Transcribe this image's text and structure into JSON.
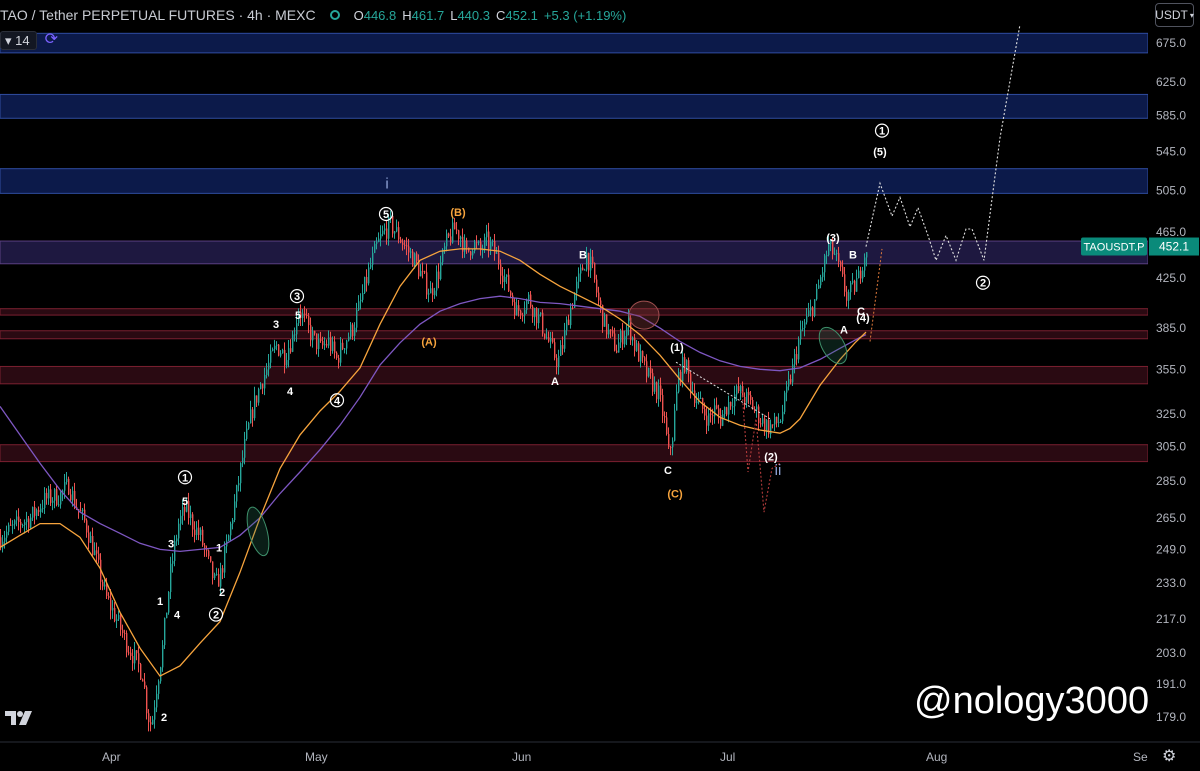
{
  "header": {
    "title": "TAO / Tether PERPETUAL FUTURES · 4h · MEXC",
    "ohlc": [
      {
        "k": "O",
        "v": "446.8"
      },
      {
        "k": "H",
        "v": "461.7"
      },
      {
        "k": "L",
        "v": "440.3"
      },
      {
        "k": "C",
        "v": "452.1"
      },
      {
        "k": "",
        "v": "+5.3 (+1.19%)"
      }
    ],
    "status_color": "#26a69a"
  },
  "indicator": {
    "length": "14"
  },
  "currency_button": {
    "label": "USDT"
  },
  "watermark": "@nology3000",
  "colors": {
    "up": "#26a69a",
    "down": "#ef5350",
    "ma_fast": "#f7a43d",
    "ma_slow": "#7e57c2",
    "zone_blue": "#0d1b47",
    "zone_red": "#2a0a10"
  },
  "icons": {
    "settings": "gear-icon",
    "logo": "tradingview-logo-icon",
    "replay": "loop-icon"
  },
  "chart_data": {
    "type": "candlestick",
    "symbol_label": "TAOUSDT.P",
    "last_price": "452.1",
    "y_scale": "log",
    "y_ticks": [
      "675.0",
      "625.0",
      "585.0",
      "545.0",
      "505.0",
      "465.0",
      "425.0",
      "385.0",
      "355.0",
      "325.0",
      "305.0",
      "285.0",
      "265.0",
      "249.0",
      "233.0",
      "217.0",
      "203.0",
      "191.0",
      "179.0"
    ],
    "x_ticks": [
      "Apr",
      "May",
      "Jun",
      "Jul",
      "Aug",
      "Se"
    ],
    "price_path": [
      [
        0,
        255
      ],
      [
        18,
        262
      ],
      [
        30,
        265
      ],
      [
        45,
        275
      ],
      [
        60,
        277
      ],
      [
        68,
        283
      ],
      [
        75,
        272
      ],
      [
        85,
        262
      ],
      [
        95,
        245
      ],
      [
        105,
        227
      ],
      [
        115,
        218
      ],
      [
        125,
        208
      ],
      [
        135,
        200
      ],
      [
        142,
        195
      ],
      [
        147,
        180
      ],
      [
        151,
        176
      ],
      [
        156,
        190
      ],
      [
        162,
        205
      ],
      [
        170,
        238
      ],
      [
        178,
        262
      ],
      [
        185,
        270
      ],
      [
        192,
        262
      ],
      [
        200,
        255
      ],
      [
        208,
        242
      ],
      [
        215,
        232
      ],
      [
        220,
        237
      ],
      [
        228,
        255
      ],
      [
        236,
        278
      ],
      [
        244,
        305
      ],
      [
        252,
        328
      ],
      [
        260,
        345
      ],
      [
        268,
        358
      ],
      [
        276,
        372
      ],
      [
        284,
        365
      ],
      [
        292,
        378
      ],
      [
        298,
        400
      ],
      [
        304,
        390
      ],
      [
        312,
        378
      ],
      [
        320,
        370
      ],
      [
        328,
        375
      ],
      [
        336,
        362
      ],
      [
        344,
        375
      ],
      [
        352,
        385
      ],
      [
        360,
        405
      ],
      [
        368,
        430
      ],
      [
        376,
        452
      ],
      [
        383,
        465
      ],
      [
        390,
        472
      ],
      [
        398,
        462
      ],
      [
        406,
        450
      ],
      [
        414,
        440
      ],
      [
        422,
        425
      ],
      [
        430,
        413
      ],
      [
        438,
        430
      ],
      [
        446,
        455
      ],
      [
        454,
        468
      ],
      [
        460,
        462
      ],
      [
        466,
        445
      ],
      [
        472,
        455
      ],
      [
        480,
        448
      ],
      [
        486,
        457
      ],
      [
        492,
        450
      ],
      [
        498,
        440
      ],
      [
        504,
        425
      ],
      [
        510,
        412
      ],
      [
        516,
        398
      ],
      [
        522,
        402
      ],
      [
        528,
        408
      ],
      [
        534,
        398
      ],
      [
        540,
        390
      ],
      [
        546,
        378
      ],
      [
        552,
        368
      ],
      [
        557,
        360
      ],
      [
        562,
        372
      ],
      [
        568,
        395
      ],
      [
        574,
        412
      ],
      [
        580,
        428
      ],
      [
        586,
        445
      ],
      [
        592,
        430
      ],
      [
        598,
        405
      ],
      [
        604,
        388
      ],
      [
        610,
        378
      ],
      [
        616,
        370
      ],
      [
        622,
        380
      ],
      [
        628,
        388
      ],
      [
        634,
        372
      ],
      [
        640,
        362
      ],
      [
        646,
        352
      ],
      [
        652,
        345
      ],
      [
        658,
        338
      ],
      [
        664,
        320
      ],
      [
        668,
        300
      ],
      [
        672,
        312
      ],
      [
        678,
        350
      ],
      [
        684,
        360
      ],
      [
        690,
        345
      ],
      [
        696,
        335
      ],
      [
        702,
        328
      ],
      [
        708,
        322
      ],
      [
        714,
        328
      ],
      [
        720,
        322
      ],
      [
        726,
        330
      ],
      [
        732,
        336
      ],
      [
        738,
        340
      ],
      [
        744,
        336
      ],
      [
        750,
        332
      ],
      [
        756,
        326
      ],
      [
        762,
        320
      ],
      [
        768,
        317
      ],
      [
        774,
        318
      ],
      [
        780,
        322
      ],
      [
        786,
        338
      ],
      [
        792,
        355
      ],
      [
        798,
        375
      ],
      [
        804,
        388
      ],
      [
        810,
        398
      ],
      [
        816,
        410
      ],
      [
        822,
        432
      ],
      [
        828,
        452
      ],
      [
        834,
        445
      ],
      [
        840,
        428
      ],
      [
        846,
        410
      ],
      [
        852,
        415
      ],
      [
        858,
        425
      ],
      [
        862,
        440
      ],
      [
        866,
        452
      ]
    ],
    "ma_fast_path": [
      [
        0,
        250
      ],
      [
        20,
        256
      ],
      [
        40,
        262
      ],
      [
        60,
        262
      ],
      [
        80,
        255
      ],
      [
        100,
        240
      ],
      [
        120,
        220
      ],
      [
        140,
        205
      ],
      [
        160,
        194
      ],
      [
        180,
        198
      ],
      [
        200,
        207
      ],
      [
        220,
        216
      ],
      [
        240,
        238
      ],
      [
        260,
        265
      ],
      [
        280,
        292
      ],
      [
        300,
        312
      ],
      [
        320,
        327
      ],
      [
        340,
        340
      ],
      [
        360,
        356
      ],
      [
        380,
        388
      ],
      [
        400,
        418
      ],
      [
        420,
        440
      ],
      [
        440,
        448
      ],
      [
        460,
        450
      ],
      [
        480,
        450
      ],
      [
        500,
        448
      ],
      [
        520,
        440
      ],
      [
        540,
        428
      ],
      [
        560,
        418
      ],
      [
        580,
        410
      ],
      [
        600,
        402
      ],
      [
        620,
        392
      ],
      [
        640,
        380
      ],
      [
        660,
        365
      ],
      [
        680,
        348
      ],
      [
        700,
        333
      ],
      [
        720,
        323
      ],
      [
        740,
        318
      ],
      [
        760,
        315
      ],
      [
        780,
        313
      ],
      [
        790,
        316
      ],
      [
        800,
        322
      ],
      [
        820,
        344
      ],
      [
        840,
        362
      ],
      [
        855,
        374
      ],
      [
        866,
        382
      ]
    ],
    "ma_slow_path": [
      [
        0,
        330
      ],
      [
        20,
        312
      ],
      [
        40,
        295
      ],
      [
        60,
        280
      ],
      [
        80,
        268
      ],
      [
        100,
        262
      ],
      [
        120,
        257
      ],
      [
        140,
        252
      ],
      [
        160,
        249
      ],
      [
        180,
        248
      ],
      [
        200,
        249
      ],
      [
        220,
        250
      ],
      [
        240,
        256
      ],
      [
        260,
        265
      ],
      [
        280,
        278
      ],
      [
        300,
        290
      ],
      [
        320,
        303
      ],
      [
        340,
        318
      ],
      [
        360,
        336
      ],
      [
        380,
        358
      ],
      [
        400,
        374
      ],
      [
        420,
        388
      ],
      [
        440,
        398
      ],
      [
        460,
        404
      ],
      [
        480,
        408
      ],
      [
        500,
        410
      ],
      [
        520,
        408
      ],
      [
        540,
        405
      ],
      [
        560,
        404
      ],
      [
        580,
        402
      ],
      [
        600,
        400
      ],
      [
        620,
        398
      ],
      [
        640,
        394
      ],
      [
        660,
        385
      ],
      [
        680,
        375
      ],
      [
        700,
        367
      ],
      [
        720,
        361
      ],
      [
        740,
        357
      ],
      [
        760,
        355
      ],
      [
        780,
        354
      ],
      [
        800,
        356
      ],
      [
        820,
        362
      ],
      [
        840,
        370
      ],
      [
        860,
        378
      ],
      [
        866,
        380
      ]
    ],
    "projection_path": [
      [
        866,
        452
      ],
      [
        880,
        512
      ],
      [
        892,
        480
      ],
      [
        900,
        498
      ],
      [
        910,
        470
      ],
      [
        918,
        488
      ],
      [
        928,
        462
      ],
      [
        936,
        440
      ],
      [
        946,
        462
      ],
      [
        956,
        440
      ],
      [
        966,
        468
      ],
      [
        972,
        468
      ],
      [
        984,
        440
      ],
      [
        1000,
        560
      ],
      [
        1020,
        700
      ]
    ],
    "alt_projection_path": [
      [
        742,
        340
      ],
      [
        748,
        290
      ],
      [
        756,
        322
      ],
      [
        764,
        268
      ],
      [
        772,
        292
      ],
      [
        780,
        295
      ]
    ],
    "zones": [
      {
        "color": "blue",
        "from": 662,
        "to": 688
      },
      {
        "color": "blue",
        "from": 582,
        "to": 610
      },
      {
        "color": "blue",
        "from": 502,
        "to": 527
      },
      {
        "color": "purple",
        "from": 437,
        "to": 457
      },
      {
        "color": "red",
        "from": 395,
        "to": 400
      },
      {
        "color": "red",
        "from": 377,
        "to": 383
      },
      {
        "color": "red",
        "from": 345,
        "to": 357
      },
      {
        "color": "red",
        "from": 296,
        "to": 306
      }
    ],
    "wave_labels": [
      {
        "text": "1",
        "style": "plain",
        "x": 160,
        "p": 225
      },
      {
        "text": "2",
        "style": "plain",
        "x": 164,
        "p": 179
      },
      {
        "text": "3",
        "style": "plain",
        "x": 171,
        "p": 252
      },
      {
        "text": "4",
        "style": "plain",
        "x": 177,
        "p": 219
      },
      {
        "text": "5",
        "style": "plain",
        "x": 185,
        "p": 274
      },
      {
        "text": "1",
        "style": "circle",
        "x": 185,
        "p": 287
      },
      {
        "text": "1",
        "style": "plain",
        "x": 219,
        "p": 250
      },
      {
        "text": "2",
        "style": "plain",
        "x": 222,
        "p": 229
      },
      {
        "text": "2",
        "style": "circle",
        "x": 216,
        "p": 219
      },
      {
        "text": "3",
        "style": "plain",
        "x": 276,
        "p": 388
      },
      {
        "text": "5",
        "style": "plain",
        "x": 298,
        "p": 395
      },
      {
        "text": "3",
        "style": "circle",
        "x": 297,
        "p": 410
      },
      {
        "text": "4",
        "style": "plain",
        "x": 290,
        "p": 340
      },
      {
        "text": "4",
        "style": "circle",
        "x": 337,
        "p": 334
      },
      {
        "text": "5",
        "style": "circle",
        "x": 386,
        "p": 482
      },
      {
        "text": "i",
        "style": "roman",
        "x": 387,
        "p": 512
      },
      {
        "text": "(B)",
        "style": "orange",
        "x": 458,
        "p": 484
      },
      {
        "text": "(A)",
        "style": "orange",
        "x": 429,
        "p": 375
      },
      {
        "text": "B",
        "style": "plain",
        "x": 583,
        "p": 445
      },
      {
        "text": "A",
        "style": "plain",
        "x": 555,
        "p": 347
      },
      {
        "text": "(1)",
        "style": "plain",
        "x": 677,
        "p": 371
      },
      {
        "text": "C",
        "style": "plain",
        "x": 668,
        "p": 291
      },
      {
        "text": "(C)",
        "style": "orange",
        "x": 675,
        "p": 278
      },
      {
        "text": "(2)",
        "style": "plain",
        "x": 771,
        "p": 299
      },
      {
        "text": "ii",
        "style": "roman",
        "x": 778,
        "p": 291
      },
      {
        "text": "(3)",
        "style": "plain",
        "x": 833,
        "p": 460
      },
      {
        "text": "B",
        "style": "plain",
        "x": 853,
        "p": 445
      },
      {
        "text": "A",
        "style": "plain",
        "x": 844,
        "p": 384
      },
      {
        "text": "C",
        "style": "plain",
        "x": 861,
        "p": 398
      },
      {
        "text": "(4)",
        "style": "plain",
        "x": 863,
        "p": 393
      },
      {
        "text": "(5)",
        "style": "plain",
        "x": 880,
        "p": 545
      },
      {
        "text": "1",
        "style": "circle",
        "x": 882,
        "p": 568
      },
      {
        "text": "2",
        "style": "circle",
        "x": 983,
        "p": 421
      }
    ]
  }
}
